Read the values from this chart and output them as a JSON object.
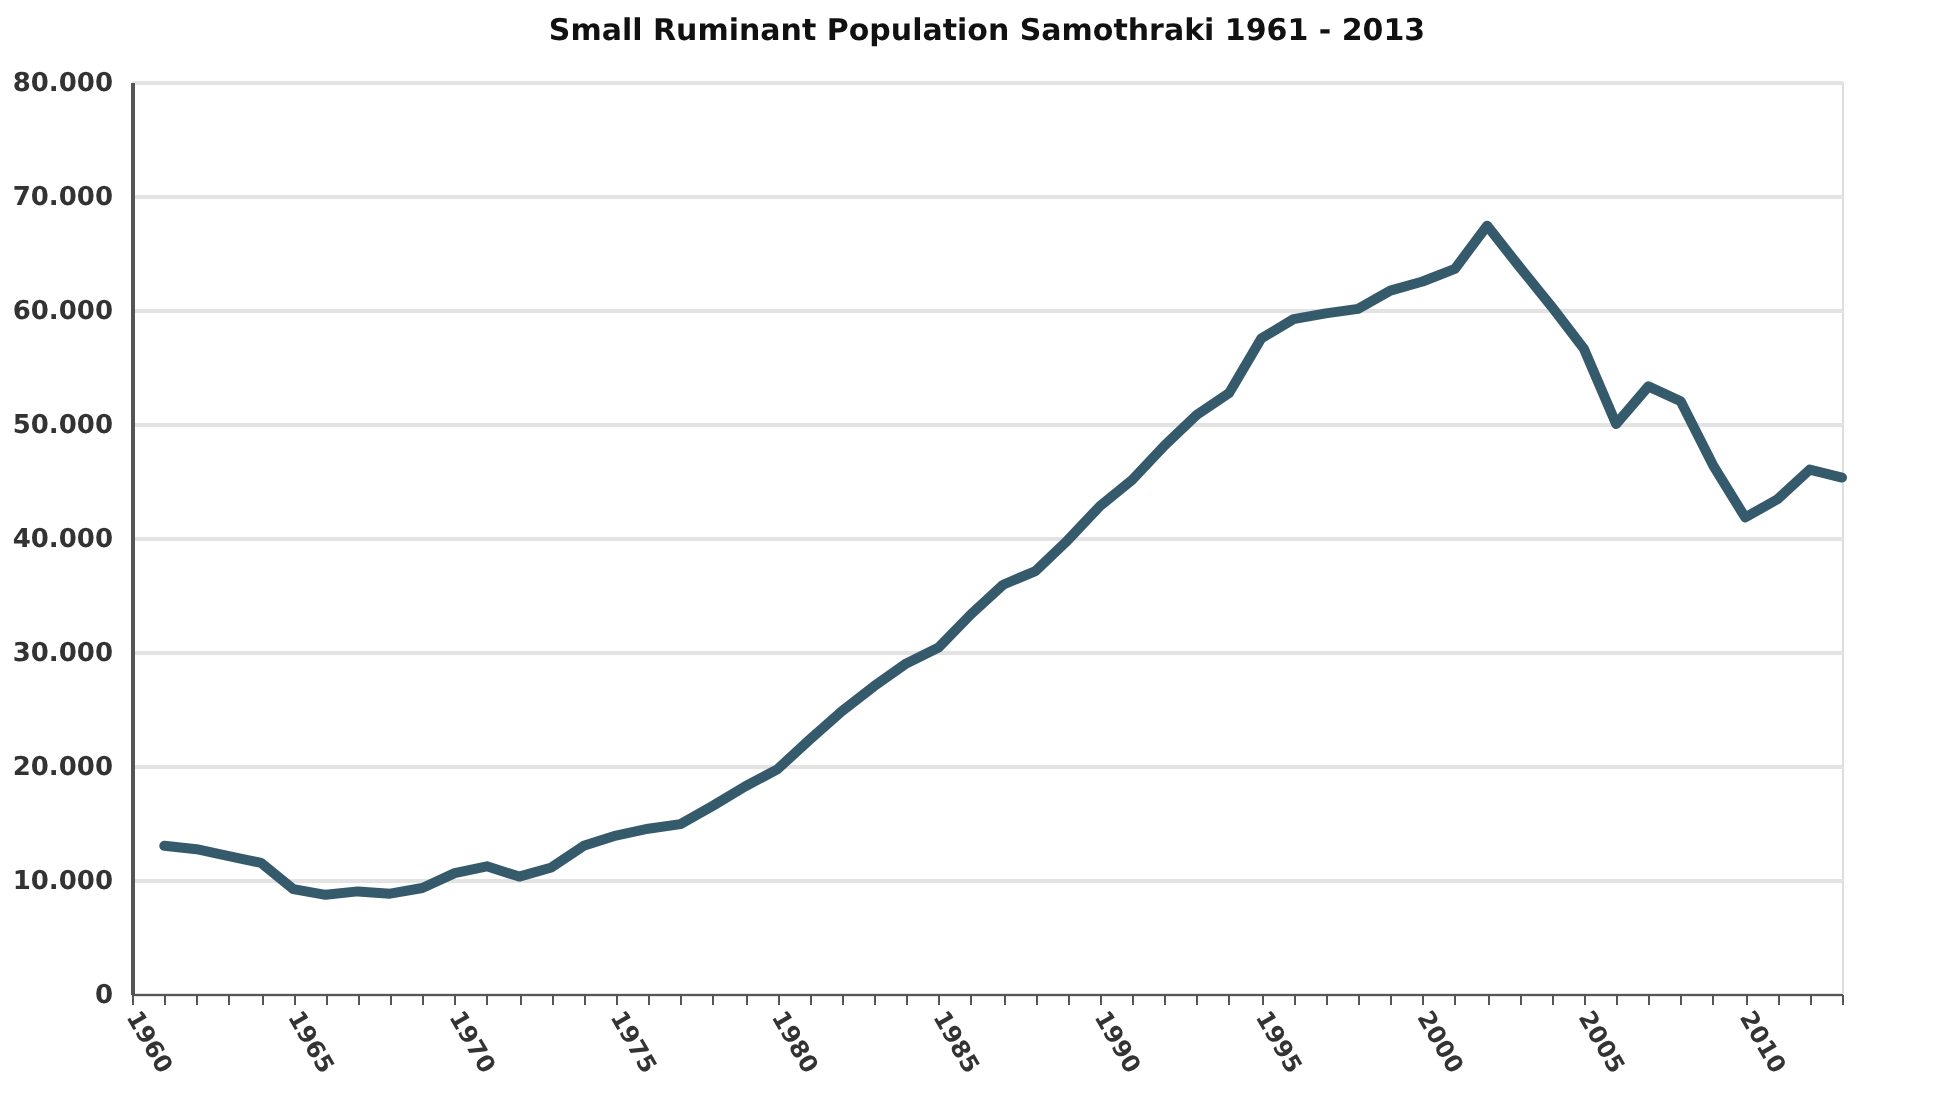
{
  "chart_data": {
    "type": "line",
    "title": "Small Ruminant Population Samothraki 1961 - 2013",
    "x": [
      1961,
      1962,
      1963,
      1964,
      1965,
      1966,
      1967,
      1968,
      1969,
      1970,
      1971,
      1972,
      1973,
      1974,
      1975,
      1976,
      1977,
      1978,
      1979,
      1980,
      1981,
      1982,
      1983,
      1984,
      1985,
      1986,
      1987,
      1988,
      1989,
      1990,
      1991,
      1992,
      1993,
      1994,
      1995,
      1996,
      1997,
      1998,
      1999,
      2000,
      2001,
      2002,
      2003,
      2004,
      2005,
      2006,
      2007,
      2008,
      2009,
      2010,
      2011,
      2012,
      2013
    ],
    "series": [
      {
        "color": "#355a6b",
        "values": [
          13000,
          12700,
          12100,
          11500,
          9200,
          8700,
          9000,
          8800,
          9300,
          10600,
          11200,
          10300,
          11100,
          13000,
          13900,
          14500,
          14900,
          16500,
          18200,
          19700,
          22300,
          24800,
          27000,
          29000,
          30400,
          33300,
          35900,
          37100,
          39800,
          42800,
          45100,
          48100,
          50800,
          52700,
          57500,
          59200,
          59700,
          60100,
          61700,
          62500,
          63600,
          67400,
          63800,
          60300,
          56600,
          50000,
          53300,
          52000,
          46400,
          41800,
          43400,
          46000,
          45300
        ]
      }
    ],
    "xlim": [
      1960,
      2013
    ],
    "xticks": [
      1960,
      {
        "value": 1961,
        "label": null
      },
      {
        "value": 1962,
        "label": null
      },
      {
        "value": 1963,
        "label": null
      },
      {
        "value": 1964,
        "label": null
      },
      1965,
      {
        "value": 1966,
        "label": null
      },
      {
        "value": 1967,
        "label": null
      },
      {
        "value": 1968,
        "label": null
      },
      {
        "value": 1969,
        "label": null
      },
      1970,
      {
        "value": 1971,
        "label": null
      },
      {
        "value": 1972,
        "label": null
      },
      {
        "value": 1973,
        "label": null
      },
      {
        "value": 1974,
        "label": null
      },
      1975,
      {
        "value": 1976,
        "label": null
      },
      {
        "value": 1977,
        "label": null
      },
      {
        "value": 1978,
        "label": null
      },
      {
        "value": 1979,
        "label": null
      },
      1980,
      {
        "value": 1981,
        "label": null
      },
      {
        "value": 1982,
        "label": null
      },
      {
        "value": 1983,
        "label": null
      },
      {
        "value": 1984,
        "label": null
      },
      1985,
      {
        "value": 1986,
        "label": null
      },
      {
        "value": 1987,
        "label": null
      },
      {
        "value": 1988,
        "label": null
      },
      {
        "value": 1989,
        "label": null
      },
      1990,
      {
        "value": 1991,
        "label": null
      },
      {
        "value": 1992,
        "label": null
      },
      {
        "value": 1993,
        "label": null
      },
      {
        "value": 1994,
        "label": null
      },
      1995,
      {
        "value": 1996,
        "label": null
      },
      {
        "value": 1997,
        "label": null
      },
      {
        "value": 1998,
        "label": null
      },
      {
        "value": 1999,
        "label": null
      },
      2000,
      {
        "value": 2001,
        "label": null
      },
      {
        "value": 2002,
        "label": null
      },
      {
        "value": 2003,
        "label": null
      },
      {
        "value": 2004,
        "label": null
      },
      2005,
      {
        "value": 2006,
        "label": null
      },
      {
        "value": 2007,
        "label": null
      },
      {
        "value": 2008,
        "label": null
      },
      {
        "value": 2009,
        "label": null
      },
      2010,
      {
        "value": 2011,
        "label": null
      },
      {
        "value": 2012,
        "label": null
      },
      {
        "value": 2013,
        "label": null
      }
    ],
    "ylim": [
      0,
      80000
    ],
    "yticks": [
      0,
      {
        "value": 10000,
        "label": "10.000"
      },
      {
        "value": 20000,
        "label": "20.000"
      },
      {
        "value": 30000,
        "label": "30.000"
      },
      {
        "value": 40000,
        "label": "40.000"
      },
      {
        "value": 50000,
        "label": "50.000"
      },
      {
        "value": 60000,
        "label": "60.000"
      },
      {
        "value": 70000,
        "label": "70.000"
      },
      {
        "value": 80000,
        "label": "80.000"
      }
    ],
    "grid": "y",
    "marker": "none",
    "line_style": "solid"
  }
}
